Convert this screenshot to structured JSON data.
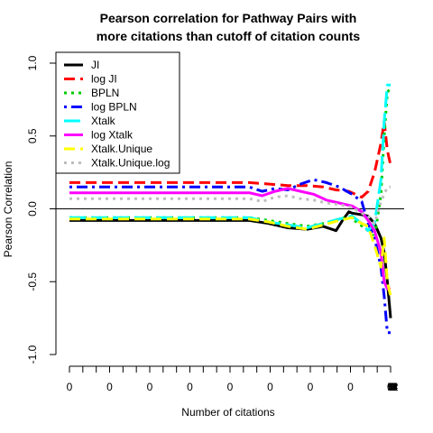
{
  "chart_data": {
    "type": "line",
    "title": [
      "Pearson correlation for Pathway Pairs with",
      "more citations than cutoff of citation counts"
    ],
    "xlabel": "Number of citations",
    "ylabel": "Pearson Correlation",
    "ylim": [
      -1.0,
      1.0
    ],
    "y_ticks": [
      {
        "value": 1.0,
        "label": "1.0"
      },
      {
        "value": 0.5,
        "label": "0.5"
      },
      {
        "value": 0.0,
        "label": "0.0"
      },
      {
        "value": -0.5,
        "label": "-0.5"
      },
      {
        "value": -1.0,
        "label": "-1.0"
      }
    ],
    "x_tick_labels": [
      "0",
      "0",
      "0",
      "0",
      "0",
      "0",
      "0",
      "0",
      "0.05263157894736842"
    ],
    "x_range": [
      0,
      1
    ],
    "legend_position": "top-left",
    "reference_line": 0,
    "series": [
      {
        "name": "JI",
        "color": "#000000",
        "dash": "solid",
        "points": [
          [
            0,
            -0.08
          ],
          [
            0.56,
            -0.08
          ],
          [
            0.62,
            -0.1
          ],
          [
            0.68,
            -0.13
          ],
          [
            0.74,
            -0.14
          ],
          [
            0.79,
            -0.12
          ],
          [
            0.83,
            -0.15
          ],
          [
            0.85,
            -0.08
          ],
          [
            0.87,
            -0.02
          ],
          [
            0.88,
            -0.03
          ],
          [
            0.91,
            -0.04
          ],
          [
            0.93,
            -0.05
          ],
          [
            0.95,
            -0.1
          ],
          [
            0.97,
            -0.2
          ],
          [
            0.98,
            -0.3
          ],
          [
            0.99,
            -0.5
          ],
          [
            1.0,
            -0.75
          ]
        ]
      },
      {
        "name": "log JI",
        "color": "#ff0000",
        "dash": "dashed",
        "points": [
          [
            0,
            0.18
          ],
          [
            0.56,
            0.18
          ],
          [
            0.62,
            0.17
          ],
          [
            0.68,
            0.16
          ],
          [
            0.74,
            0.16
          ],
          [
            0.79,
            0.15
          ],
          [
            0.83,
            0.13
          ],
          [
            0.87,
            0.12
          ],
          [
            0.89,
            0.1
          ],
          [
            0.91,
            0.08
          ],
          [
            0.93,
            0.12
          ],
          [
            0.95,
            0.25
          ],
          [
            0.97,
            0.45
          ],
          [
            0.98,
            0.6
          ],
          [
            0.99,
            0.4
          ],
          [
            1.0,
            0.3
          ]
        ]
      },
      {
        "name": "BPLN",
        "color": "#00cd00",
        "dash": "dotted",
        "points": [
          [
            0,
            -0.06
          ],
          [
            0.56,
            -0.06
          ],
          [
            0.62,
            -0.08
          ],
          [
            0.68,
            -0.1
          ],
          [
            0.74,
            -0.12
          ],
          [
            0.79,
            -0.1
          ],
          [
            0.83,
            -0.08
          ],
          [
            0.87,
            -0.05
          ],
          [
            0.9,
            -0.1
          ],
          [
            0.93,
            -0.15
          ],
          [
            0.95,
            -0.2
          ],
          [
            0.97,
            0.1
          ],
          [
            0.98,
            0.5
          ],
          [
            0.99,
            0.8
          ],
          [
            1.0,
            0.83
          ]
        ]
      },
      {
        "name": "log BPLN",
        "color": "#0000ff",
        "dash": "dotdash",
        "points": [
          [
            0,
            0.15
          ],
          [
            0.56,
            0.15
          ],
          [
            0.6,
            0.12
          ],
          [
            0.64,
            0.14
          ],
          [
            0.68,
            0.13
          ],
          [
            0.72,
            0.17
          ],
          [
            0.76,
            0.2
          ],
          [
            0.8,
            0.18
          ],
          [
            0.84,
            0.15
          ],
          [
            0.88,
            0.1
          ],
          [
            0.91,
            0.05
          ],
          [
            0.93,
            -0.1
          ],
          [
            0.95,
            -0.2
          ],
          [
            0.97,
            -0.4
          ],
          [
            0.98,
            -0.6
          ],
          [
            0.99,
            -0.85
          ],
          [
            1.0,
            -0.85
          ]
        ]
      },
      {
        "name": "Xtalk",
        "color": "#00ffff",
        "dash": "longdash",
        "points": [
          [
            0,
            -0.06
          ],
          [
            0.56,
            -0.06
          ],
          [
            0.62,
            -0.09
          ],
          [
            0.68,
            -0.11
          ],
          [
            0.74,
            -0.13
          ],
          [
            0.79,
            -0.1
          ],
          [
            0.84,
            -0.07
          ],
          [
            0.88,
            -0.05
          ],
          [
            0.91,
            -0.1
          ],
          [
            0.93,
            -0.15
          ],
          [
            0.95,
            -0.1
          ],
          [
            0.97,
            0.2
          ],
          [
            0.98,
            0.6
          ],
          [
            0.99,
            0.85
          ],
          [
            1.0,
            0.85
          ]
        ]
      },
      {
        "name": "log Xtalk",
        "color": "#ff00ff",
        "dash": "solid",
        "points": [
          [
            0,
            0.11
          ],
          [
            0.56,
            0.11
          ],
          [
            0.6,
            0.09
          ],
          [
            0.64,
            0.12
          ],
          [
            0.68,
            0.14
          ],
          [
            0.72,
            0.12
          ],
          [
            0.76,
            0.1
          ],
          [
            0.8,
            0.06
          ],
          [
            0.84,
            0.04
          ],
          [
            0.88,
            0.02
          ],
          [
            0.91,
            -0.02
          ],
          [
            0.93,
            -0.08
          ],
          [
            0.95,
            -0.15
          ],
          [
            0.97,
            -0.3
          ],
          [
            0.98,
            -0.5
          ],
          [
            0.99,
            -0.55
          ],
          [
            1.0,
            -0.55
          ]
        ]
      },
      {
        "name": "Xtalk.Unique",
        "color": "#ffff00",
        "dash": "dashed",
        "points": [
          [
            0,
            -0.07
          ],
          [
            0.56,
            -0.07
          ],
          [
            0.62,
            -0.09
          ],
          [
            0.68,
            -0.12
          ],
          [
            0.74,
            -0.14
          ],
          [
            0.79,
            -0.11
          ],
          [
            0.84,
            -0.08
          ],
          [
            0.88,
            -0.06
          ],
          [
            0.91,
            -0.1
          ],
          [
            0.93,
            -0.12
          ],
          [
            0.95,
            -0.25
          ],
          [
            0.97,
            -0.4
          ],
          [
            0.98,
            -0.2
          ],
          [
            0.99,
            -0.5
          ],
          [
            1.0,
            -0.6
          ]
        ]
      },
      {
        "name": "Xtalk.Unique.log",
        "color": "#bebebe",
        "dash": "dotted",
        "points": [
          [
            0,
            0.07
          ],
          [
            0.56,
            0.07
          ],
          [
            0.6,
            0.05
          ],
          [
            0.64,
            0.08
          ],
          [
            0.68,
            0.09
          ],
          [
            0.72,
            0.07
          ],
          [
            0.76,
            0.06
          ],
          [
            0.8,
            0.04
          ],
          [
            0.84,
            0.03
          ],
          [
            0.88,
            0.01
          ],
          [
            0.91,
            -0.03
          ],
          [
            0.93,
            -0.05
          ],
          [
            0.95,
            -0.1
          ],
          [
            0.97,
            0.05
          ],
          [
            0.98,
            0.1
          ],
          [
            0.99,
            0.15
          ],
          [
            1.0,
            0.15
          ]
        ]
      }
    ]
  }
}
